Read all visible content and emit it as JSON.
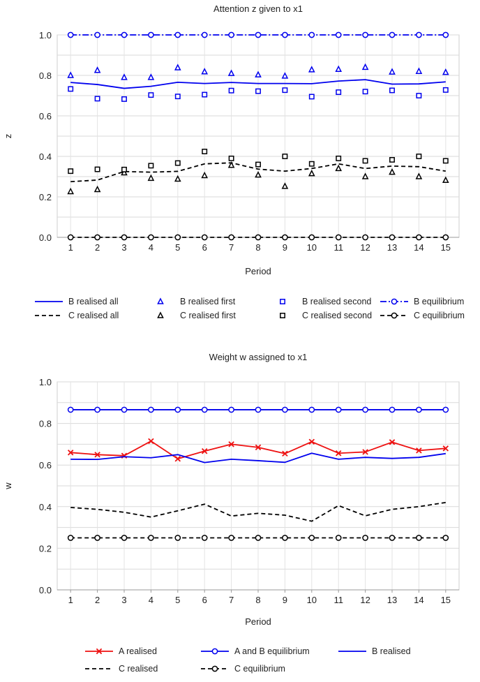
{
  "chart_data": [
    {
      "type": "line",
      "title": "Attention z given to x1",
      "xlabel": "Period",
      "ylabel": "z",
      "x": [
        1,
        2,
        3,
        4,
        5,
        6,
        7,
        8,
        9,
        10,
        11,
        12,
        13,
        14,
        15
      ],
      "xlim": [
        0.5,
        15.5
      ],
      "ylim": [
        0.0,
        1.0
      ],
      "yticks": [
        "0.0",
        "0.2",
        "0.4",
        "0.6",
        "0.8",
        "1.0"
      ],
      "grid": true,
      "legend_position": "bottom",
      "series": [
        {
          "name": "B realised all",
          "color": "#0000ee",
          "style": "solid",
          "marker": "none",
          "values": [
            0.765,
            0.755,
            0.736,
            0.746,
            0.766,
            0.76,
            0.765,
            0.76,
            0.76,
            0.759,
            0.772,
            0.779,
            0.757,
            0.758,
            0.768
          ]
        },
        {
          "name": "B realised first",
          "color": "#0000ee",
          "style": "none",
          "marker": "triangle",
          "values": [
            0.8,
            0.825,
            0.79,
            0.79,
            0.838,
            0.818,
            0.81,
            0.803,
            0.797,
            0.828,
            0.83,
            0.84,
            0.817,
            0.82,
            0.815
          ]
        },
        {
          "name": "B realised second",
          "color": "#0000ee",
          "style": "none",
          "marker": "square",
          "values": [
            0.733,
            0.685,
            0.683,
            0.703,
            0.696,
            0.705,
            0.725,
            0.722,
            0.727,
            0.695,
            0.717,
            0.72,
            0.726,
            0.7,
            0.728
          ]
        },
        {
          "name": "B equilibrium",
          "color": "#0000ee",
          "style": "dashdot",
          "marker": "circle",
          "values": [
            1.0,
            1.0,
            1.0,
            1.0,
            1.0,
            1.0,
            1.0,
            1.0,
            1.0,
            1.0,
            1.0,
            1.0,
            1.0,
            1.0,
            1.0
          ]
        },
        {
          "name": "C realised all",
          "color": "#000000",
          "style": "dashed",
          "marker": "none",
          "values": [
            0.275,
            0.283,
            0.325,
            0.322,
            0.326,
            0.363,
            0.368,
            0.337,
            0.327,
            0.34,
            0.363,
            0.34,
            0.352,
            0.349,
            0.327
          ]
        },
        {
          "name": "C realised first",
          "color": "#000000",
          "style": "none",
          "marker": "triangle",
          "values": [
            0.226,
            0.236,
            0.319,
            0.292,
            0.288,
            0.305,
            0.356,
            0.308,
            0.252,
            0.315,
            0.34,
            0.3,
            0.322,
            0.3,
            0.282
          ]
        },
        {
          "name": "C realised second",
          "color": "#000000",
          "style": "none",
          "marker": "square",
          "values": [
            0.327,
            0.336,
            0.335,
            0.354,
            0.367,
            0.424,
            0.39,
            0.36,
            0.4,
            0.363,
            0.39,
            0.378,
            0.383,
            0.4,
            0.378
          ]
        },
        {
          "name": "C equilibrium",
          "color": "#000000",
          "style": "dashed",
          "marker": "circle",
          "values": [
            0.0,
            0.0,
            0.0,
            0.0,
            0.0,
            0.0,
            0.0,
            0.0,
            0.0,
            0.0,
            0.0,
            0.0,
            0.0,
            0.0,
            0.0
          ]
        }
      ]
    },
    {
      "type": "line",
      "title": "Weight w assigned to x1",
      "xlabel": "Period",
      "ylabel": "w",
      "x": [
        1,
        2,
        3,
        4,
        5,
        6,
        7,
        8,
        9,
        10,
        11,
        12,
        13,
        14,
        15
      ],
      "xlim": [
        0.5,
        15.5
      ],
      "ylim": [
        0.0,
        1.0
      ],
      "yticks": [
        "0.0",
        "0.2",
        "0.4",
        "0.6",
        "0.8",
        "1.0"
      ],
      "grid": true,
      "legend_position": "bottom",
      "series": [
        {
          "name": "A realised",
          "color": "#ee1111",
          "style": "solid",
          "marker": "x",
          "values": [
            0.66,
            0.65,
            0.645,
            0.715,
            0.63,
            0.667,
            0.7,
            0.685,
            0.655,
            0.712,
            0.657,
            0.663,
            0.71,
            0.67,
            0.68
          ]
        },
        {
          "name": "A and B equilibrium",
          "color": "#0000ee",
          "style": "solid",
          "marker": "circle",
          "values": [
            0.866,
            0.866,
            0.866,
            0.866,
            0.866,
            0.866,
            0.866,
            0.866,
            0.866,
            0.866,
            0.866,
            0.866,
            0.866,
            0.866,
            0.866
          ]
        },
        {
          "name": "B realised",
          "color": "#0000ee",
          "style": "solid",
          "marker": "none",
          "values": [
            0.628,
            0.627,
            0.64,
            0.635,
            0.65,
            0.612,
            0.628,
            0.621,
            0.613,
            0.657,
            0.628,
            0.637,
            0.632,
            0.637,
            0.655
          ]
        },
        {
          "name": "C realised",
          "color": "#000000",
          "style": "dashed",
          "marker": "none",
          "values": [
            0.396,
            0.387,
            0.373,
            0.35,
            0.38,
            0.412,
            0.355,
            0.368,
            0.359,
            0.33,
            0.405,
            0.356,
            0.387,
            0.4,
            0.42
          ]
        },
        {
          "name": "C equilibrium",
          "color": "#000000",
          "style": "dashed",
          "marker": "circle",
          "values": [
            0.25,
            0.25,
            0.25,
            0.25,
            0.25,
            0.25,
            0.25,
            0.25,
            0.25,
            0.25,
            0.25,
            0.25,
            0.25,
            0.25,
            0.25
          ]
        }
      ]
    }
  ]
}
